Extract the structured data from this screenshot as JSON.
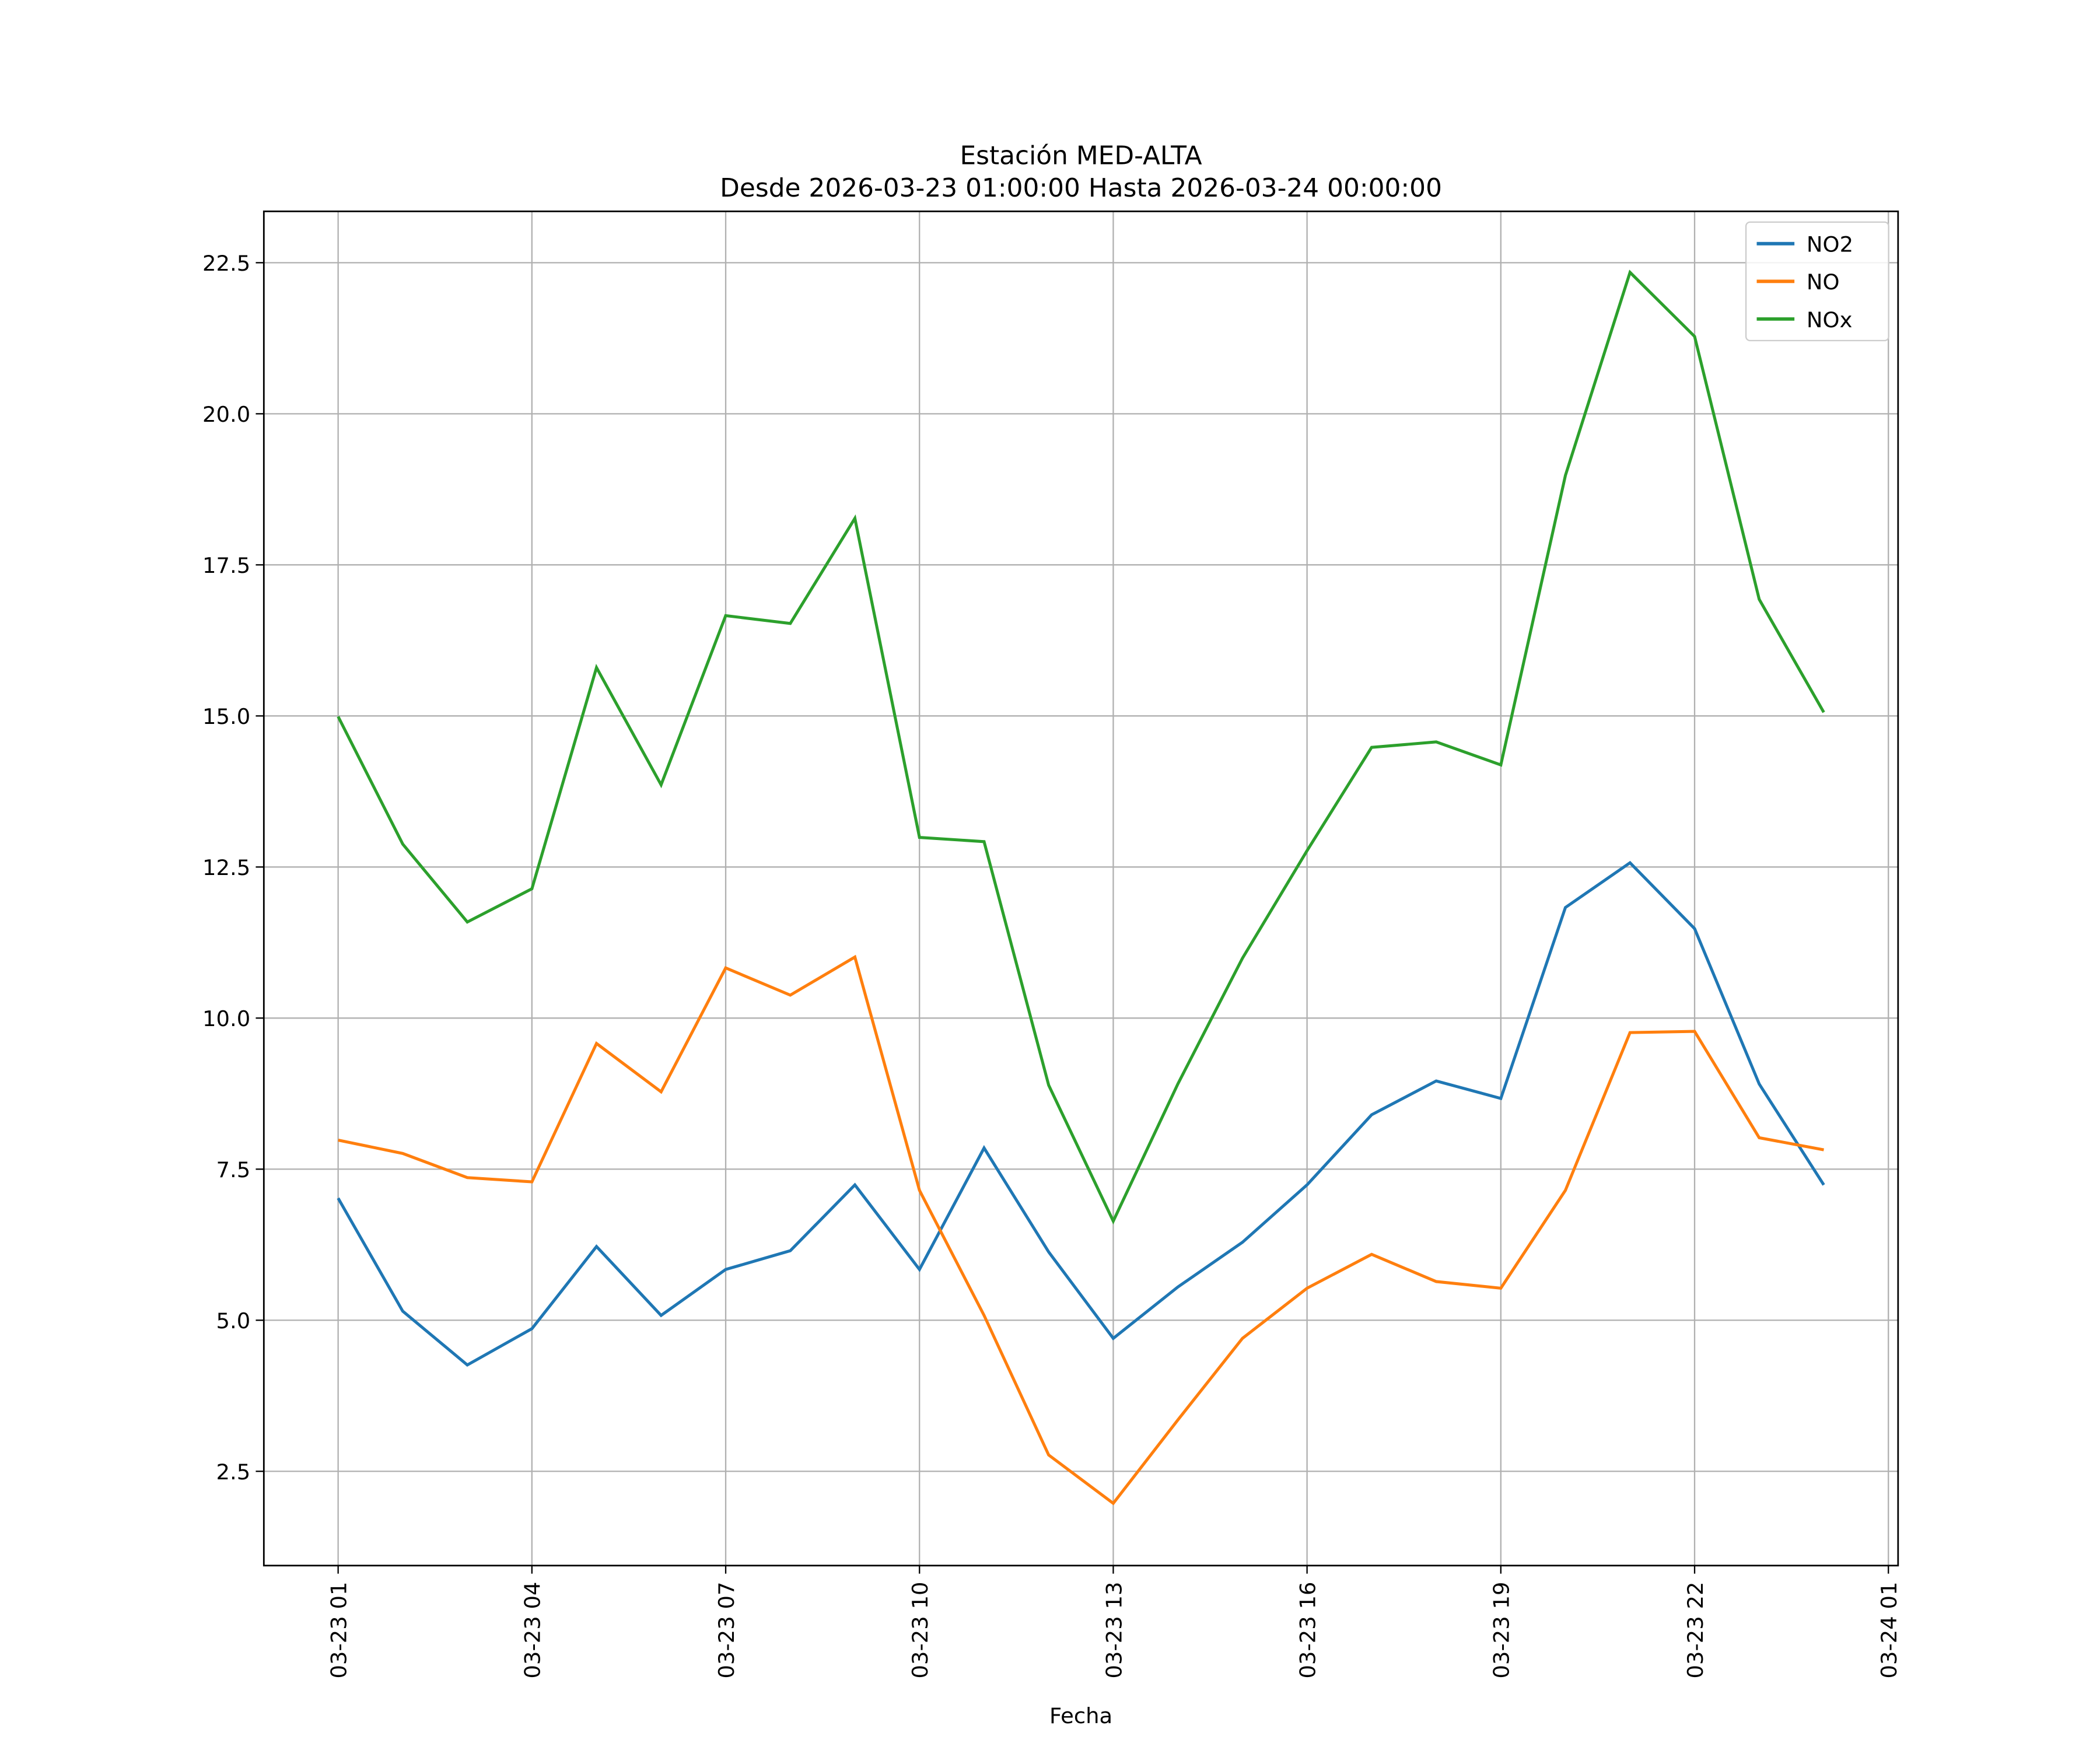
{
  "chart_data": {
    "type": "line",
    "title": "Estación MED-ALTA",
    "subtitle": "Desde 2026-03-23 01:00:00 Hasta 2026-03-24 00:00:00",
    "xlabel": "Fecha",
    "ylabel": "",
    "x": [
      "2026-03-23 01:00",
      "2026-03-23 02:00",
      "2026-03-23 03:00",
      "2026-03-23 04:00",
      "2026-03-23 05:00",
      "2026-03-23 06:00",
      "2026-03-23 07:00",
      "2026-03-23 08:00",
      "2026-03-23 09:00",
      "2026-03-23 10:00",
      "2026-03-23 11:00",
      "2026-03-23 12:00",
      "2026-03-23 13:00",
      "2026-03-23 14:00",
      "2026-03-23 15:00",
      "2026-03-23 16:00",
      "2026-03-23 17:00",
      "2026-03-23 18:00",
      "2026-03-23 19:00",
      "2026-03-23 20:00",
      "2026-03-23 21:00",
      "2026-03-23 22:00",
      "2026-03-23 23:00",
      "2026-03-24 00:00"
    ],
    "xlim": [
      "2026-03-22 23:51",
      "2026-03-24 01:09"
    ],
    "ylim": [
      0.94,
      23.35
    ],
    "xticks": [
      "03-23 01",
      "03-23 04",
      "03-23 07",
      "03-23 10",
      "03-23 13",
      "03-23 16",
      "03-23 19",
      "03-23 22",
      "03-24 01"
    ],
    "yticks": [
      "2.5",
      "5.0",
      "7.5",
      "10.0",
      "12.5",
      "15.0",
      "17.5",
      "20.0",
      "22.5"
    ],
    "grid": true,
    "legend_placement": "top-right",
    "series": [
      {
        "name": "NO2",
        "color": "#1f77b4",
        "values": [
          7.02,
          5.15,
          4.26,
          4.86,
          6.22,
          5.08,
          5.84,
          6.15,
          7.24,
          5.84,
          7.85,
          6.13,
          4.7,
          5.55,
          6.29,
          7.24,
          8.4,
          8.96,
          8.67,
          11.83,
          12.57,
          11.48,
          8.91,
          7.24
        ]
      },
      {
        "name": "NO",
        "color": "#ff7f0e",
        "values": [
          7.98,
          7.76,
          7.36,
          7.29,
          9.58,
          8.78,
          10.83,
          10.38,
          11.01,
          7.15,
          5.08,
          2.77,
          1.97,
          3.35,
          4.7,
          5.53,
          6.09,
          5.64,
          5.53,
          7.15,
          9.76,
          9.78,
          8.02,
          7.82
        ]
      },
      {
        "name": "NOx",
        "color": "#2ca02c",
        "values": [
          14.99,
          12.88,
          11.59,
          12.14,
          15.8,
          13.86,
          16.66,
          16.53,
          18.27,
          12.99,
          12.92,
          8.89,
          6.64,
          8.91,
          10.99,
          12.77,
          14.48,
          14.57,
          14.19,
          18.98,
          22.34,
          21.28,
          16.93,
          15.06
        ]
      }
    ]
  }
}
